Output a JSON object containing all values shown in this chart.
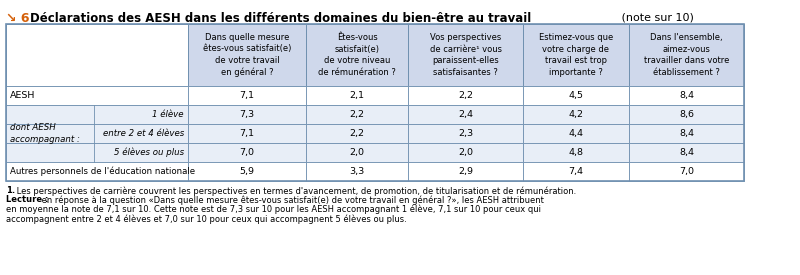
{
  "title_arrow": "↘ 6",
  "title_bold": "Déclarations des AESH dans les différents domaines du bien-être au travail",
  "title_note": " (note sur 10)",
  "col_headers": [
    "Dans quelle mesure\nêtes-vous satisfait(e)\nde votre travail\nen général ?",
    "Êtes-vous\nsatisfait(e)\nde votre niveau\nde rémunération ?",
    "Vos perspectives\nde carrière¹ vous\nparaissent-elles\nsatisfaisantes ?",
    "Estimez-vous que\nvotre charge de\ntravail est trop\nimportante ?",
    "Dans l'ensemble,\naimez-vous\ntravailler dans votre\nétablissement ?"
  ],
  "data_rows": [
    {
      "label_main": "AESH",
      "label_sub": "",
      "values": [
        "7,1",
        "2,1",
        "2,2",
        "4,5",
        "8,4"
      ],
      "bg": "#ffffff",
      "is_sub": false
    },
    {
      "label_main": "",
      "label_sub": "1 élève",
      "values": [
        "7,3",
        "2,2",
        "2,4",
        "4,2",
        "8,6"
      ],
      "bg": "#e8eef7",
      "is_sub": true
    },
    {
      "label_main": "dont AESH\naccompagnant :",
      "label_sub": "entre 2 et 4 élèves",
      "values": [
        "7,1",
        "2,2",
        "2,3",
        "4,4",
        "8,4"
      ],
      "bg": "#e8eef7",
      "is_sub": true
    },
    {
      "label_main": "",
      "label_sub": "5 élèves ou plus",
      "values": [
        "7,0",
        "2,0",
        "2,0",
        "4,8",
        "8,4"
      ],
      "bg": "#e8eef7",
      "is_sub": true
    },
    {
      "label_main": "Autres personnels de l'éducation nationale",
      "label_sub": "",
      "values": [
        "5,9",
        "3,3",
        "2,9",
        "7,4",
        "7,0"
      ],
      "bg": "#ffffff",
      "is_sub": false
    }
  ],
  "footnote1_bold": "1.",
  "footnote1_rest": " Les perspectives de carrière couvrent les perspectives en termes d'avancement, de promotion, de titularisation et de rémunération.",
  "footnote2_bold": "Lecture :",
  "footnote2_rest": " en réponse à la question «Dans quelle mesure êtes-vous satisfait(e) de votre travail en général ?», les AESH attribuent",
  "footnote3": "en moyenne la note de 7,1 sur 10. Cette note est de 7,3 sur 10 pour les AESH accompagnant 1 élève, 7,1 sur 10 pour ceux qui",
  "footnote4": "accompagnent entre 2 et 4 élèves et 7,0 sur 10 pour ceux qui accompagnent 5 élèves ou plus.",
  "header_bg": "#cfd8eb",
  "sub_bg": "#e8eef7",
  "border_color": "#7090b0",
  "title_arrow_color": "#d4600a"
}
